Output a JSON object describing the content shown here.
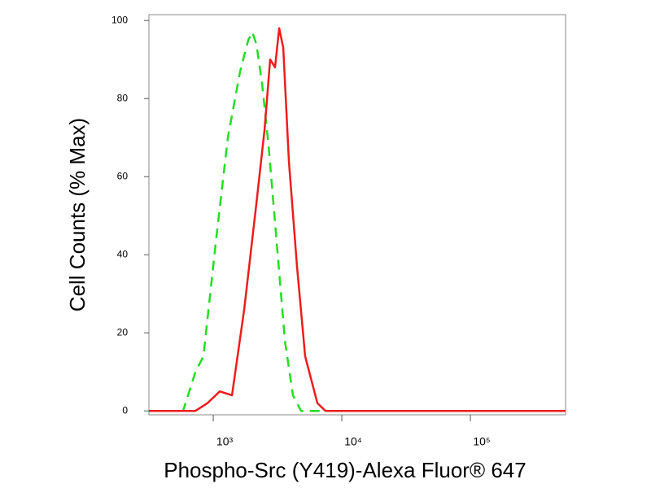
{
  "chart_data": {
    "type": "line",
    "xlabel": "Phospho-Src (Y419)-Alexa Fluor® 647",
    "ylabel": "Cell Counts (% Max)",
    "xscale": "log",
    "xlim": [
      316,
      550000
    ],
    "xticks": [
      {
        "value": 1000,
        "label": "10³"
      },
      {
        "value": 10000,
        "label": "10⁴"
      },
      {
        "value": 100000,
        "label": "10⁵"
      }
    ],
    "ylim": [
      -1,
      101.5
    ],
    "yticks": [
      0,
      20,
      40,
      60,
      80,
      100
    ],
    "series": [
      {
        "color": "#22dd22",
        "linestyle": "dashed",
        "x": [
          316,
          583,
          727,
          839,
          1045,
          1300,
          1618,
          1872,
          2013,
          2164,
          2397,
          2693,
          3117,
          3607,
          4170,
          4826,
          550000
        ],
        "values": [
          0,
          0,
          10,
          14,
          43,
          70,
          87,
          95,
          97,
          94,
          84,
          68,
          43,
          18,
          4,
          0,
          0
        ]
      },
      {
        "color": "#ee1c1c",
        "linestyle": "solid",
        "x": [
          316,
          727,
          903,
          1124,
          1399,
          1741,
          2164,
          2505,
          2773,
          3026,
          3258,
          3503,
          3877,
          4484,
          5188,
          6457,
          7466,
          550000
        ],
        "values": [
          0,
          0,
          2,
          5,
          4,
          26,
          53,
          72,
          90,
          88,
          98,
          93,
          64,
          37,
          14,
          2,
          0,
          0
        ]
      }
    ]
  }
}
